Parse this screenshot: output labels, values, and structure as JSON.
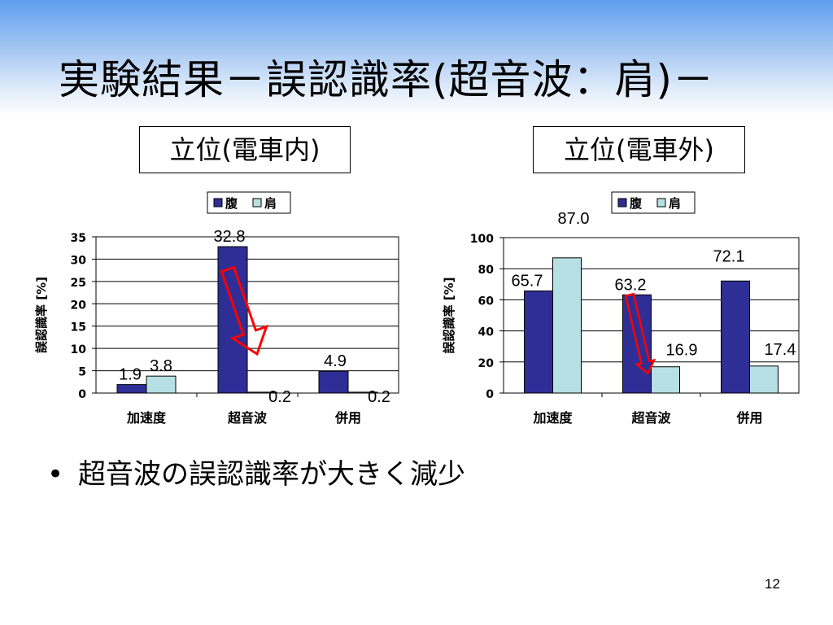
{
  "slide": {
    "title": "実験結果－誤認識率(超音波：肩)－",
    "bullet": "超音波の誤認識率が大きく減少",
    "bullet_marker": "•",
    "page_number": "12"
  },
  "colors": {
    "series_abdomen": "#2e2e96",
    "series_shoulder": "#b6e0e4",
    "arrow": "#ff0000"
  },
  "chart_data": [
    {
      "type": "bar",
      "title": "立位(電車内)",
      "ylabel": "誤認識率 [%]",
      "ylim": [
        0,
        35
      ],
      "yticks": [
        0,
        5,
        10,
        15,
        20,
        25,
        30,
        35
      ],
      "categories": [
        "加速度",
        "超音波",
        "併用"
      ],
      "series": [
        {
          "name": "腹",
          "values": [
            1.9,
            32.8,
            4.9
          ]
        },
        {
          "name": "肩",
          "values": [
            3.8,
            0.2,
            0.2
          ]
        }
      ],
      "data_labels": [
        [
          "1.9",
          "32.8",
          "4.9"
        ],
        [
          "3.8",
          "0.2",
          "0.2"
        ]
      ],
      "legend": "top",
      "grid": true,
      "annotation": "red arrow from 超音波 腹 bar to 超音波 肩 bar"
    },
    {
      "type": "bar",
      "title": "立位(電車外)",
      "ylabel": "誤認識率 [%]",
      "ylim": [
        0,
        100
      ],
      "yticks": [
        0,
        20,
        40,
        60,
        80,
        100
      ],
      "categories": [
        "加速度",
        "超音波",
        "併用"
      ],
      "series": [
        {
          "name": "腹",
          "values": [
            65.7,
            63.2,
            72.1
          ]
        },
        {
          "name": "肩",
          "values": [
            87.0,
            16.9,
            17.4
          ]
        }
      ],
      "data_labels": [
        [
          "65.7",
          "63.2",
          "72.1"
        ],
        [
          "87.0",
          "16.9",
          "17.4"
        ]
      ],
      "legend": "top",
      "grid": true,
      "annotation": "red arrow from 超音波 腹 bar to 超音波 肩 bar"
    }
  ]
}
